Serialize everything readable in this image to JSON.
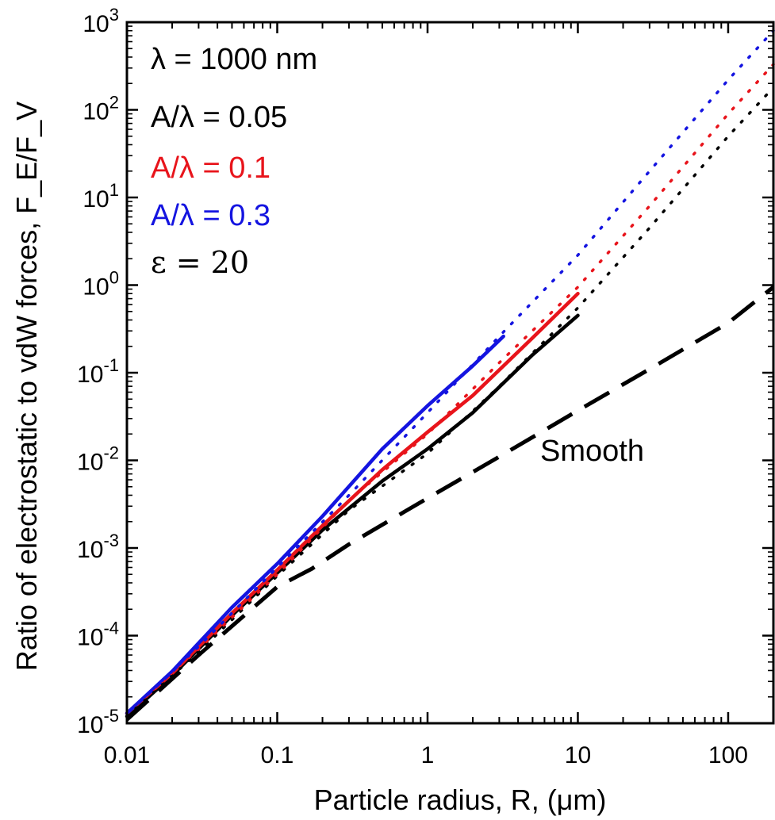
{
  "chart_data": {
    "type": "line",
    "xlabel": "Particle radius, R, (μm)",
    "ylabel": "Ratio of electrostatic to vdW forces, F_E/F_V",
    "x_scale": "log",
    "y_scale": "log",
    "xlim": [
      0.01,
      200
    ],
    "ylim": [
      1e-05,
      1000
    ],
    "x_tick_labels": [
      "0.01",
      "0.1",
      "1",
      "10",
      "100"
    ],
    "x_tick_values": [
      0.01,
      0.1,
      1,
      10,
      100
    ],
    "y_tick_labels": [
      {
        "base": "10",
        "exp": "-5"
      },
      {
        "base": "10",
        "exp": "-4"
      },
      {
        "base": "10",
        "exp": "-3"
      },
      {
        "base": "10",
        "exp": "-2"
      },
      {
        "base": "10",
        "exp": "-1"
      },
      {
        "base": "10",
        "exp": "0"
      },
      {
        "base": "10",
        "exp": "1"
      },
      {
        "base": "10",
        "exp": "2"
      },
      {
        "base": "10",
        "exp": "3"
      }
    ],
    "y_tick_values": [
      1e-05,
      0.0001,
      0.001,
      0.01,
      0.1,
      1,
      10,
      100,
      1000
    ],
    "grid": false,
    "annotations": [
      {
        "text": "λ = 1000 nm",
        "color": "#000000"
      },
      {
        "text": "A/λ = 0.05",
        "color": "#000000"
      },
      {
        "text": "A/λ = 0.1",
        "color": "#e8141b"
      },
      {
        "text": "A/λ = 0.3",
        "color": "#1414e0"
      },
      {
        "text": "ε = 20",
        "color": "#000000"
      }
    ],
    "smooth_label": "Smooth",
    "series": [
      {
        "color": "#000000",
        "style": "solid",
        "x": [
          0.01,
          0.02,
          0.05,
          0.1,
          0.2,
          0.5,
          1,
          2,
          5,
          10
        ],
        "y": [
          1.2e-05,
          3.5e-05,
          0.00017,
          0.00052,
          0.0016,
          0.0058,
          0.0135,
          0.035,
          0.16,
          0.45
        ]
      },
      {
        "color": "#e8141b",
        "style": "solid",
        "x": [
          0.01,
          0.02,
          0.05,
          0.1,
          0.2,
          0.5,
          1,
          2,
          5,
          10
        ],
        "y": [
          1.3e-05,
          3.7e-05,
          0.00018,
          0.00056,
          0.0018,
          0.0078,
          0.021,
          0.055,
          0.25,
          0.8
        ]
      },
      {
        "color": "#1414e0",
        "style": "solid",
        "x": [
          0.01,
          0.02,
          0.05,
          0.1,
          0.2,
          0.5,
          1,
          2,
          3.2
        ],
        "y": [
          1.3e-05,
          3.9e-05,
          0.00021,
          0.00066,
          0.0023,
          0.0135,
          0.042,
          0.12,
          0.26
        ]
      },
      {
        "color": "#000000",
        "style": "dotted",
        "x": [
          0.01,
          0.03,
          0.1,
          0.3,
          1,
          3,
          10,
          30,
          100,
          200
        ],
        "y": [
          1.2e-05,
          6.5e-05,
          0.00048,
          0.0027,
          0.012,
          0.07,
          0.55,
          4.5,
          50,
          180
        ]
      },
      {
        "color": "#e8141b",
        "style": "dotted",
        "x": [
          0.01,
          0.03,
          0.1,
          0.3,
          1,
          3,
          10,
          30,
          100,
          200
        ],
        "y": [
          1.3e-05,
          7e-05,
          0.0005,
          0.0035,
          0.02,
          0.13,
          0.95,
          8,
          90,
          330
        ]
      },
      {
        "color": "#1414e0",
        "style": "dotted",
        "x": [
          0.01,
          0.03,
          0.1,
          0.3,
          1,
          3,
          10,
          30,
          100,
          200
        ],
        "y": [
          1.3e-05,
          7.5e-05,
          0.0006,
          0.004,
          0.035,
          0.26,
          2.2,
          20,
          220,
          800
        ]
      },
      {
        "color": "#000000",
        "style": "dashed",
        "x": [
          0.01,
          0.03,
          0.1,
          0.17,
          0.3,
          1,
          3,
          10,
          30,
          100,
          200
        ],
        "y": [
          1.1e-05,
          6e-05,
          0.00036,
          0.00058,
          0.0011,
          0.0037,
          0.011,
          0.037,
          0.11,
          0.37,
          0.95
        ]
      }
    ]
  }
}
